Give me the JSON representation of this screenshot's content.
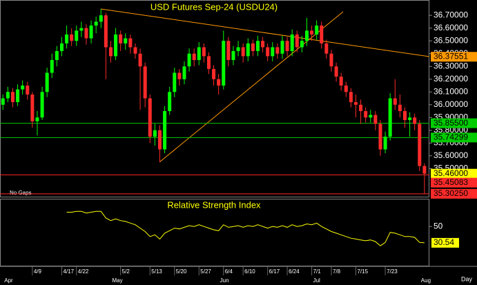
{
  "chart_data": {
    "type": "candlestick",
    "title": "USD Futures Sep-24 (USDU24)",
    "note": "No Gaps",
    "x_axis_label": "Day",
    "up_color": "#00ff00",
    "down_color": "#ff2a2a",
    "title_color": "#ffff00",
    "categories": [
      null,
      null,
      null,
      null,
      null,
      null,
      "4/9",
      null,
      null,
      null,
      null,
      null,
      "4/17",
      null,
      null,
      "4/22",
      null,
      null,
      null,
      null,
      null,
      null,
      null,
      null,
      "5/2",
      null,
      null,
      null,
      null,
      null,
      "5/13",
      null,
      null,
      null,
      null,
      "5/20",
      null,
      null,
      null,
      null,
      "5/27",
      null,
      null,
      null,
      null,
      "6/4",
      null,
      null,
      null,
      "6/10",
      null,
      null,
      null,
      null,
      "6/17",
      null,
      null,
      null,
      "6/24",
      null,
      null,
      null,
      null,
      "7/1",
      null,
      null,
      null,
      "7/8",
      null,
      null,
      null,
      null,
      "7/15",
      null,
      null,
      null,
      null,
      null,
      "7/23",
      null,
      null,
      null,
      null,
      null,
      null,
      null,
      null
    ],
    "months": [
      "Apr",
      null,
      null,
      null,
      null,
      null,
      null,
      null,
      null,
      null,
      null,
      null,
      null,
      null,
      null,
      null,
      null,
      null,
      null,
      null,
      null,
      null,
      "May",
      null,
      null,
      null,
      null,
      null,
      null,
      null,
      null,
      null,
      null,
      null,
      null,
      null,
      null,
      null,
      null,
      null,
      null,
      null,
      null,
      null,
      "Jun",
      null,
      null,
      null,
      null,
      null,
      null,
      null,
      null,
      null,
      null,
      null,
      null,
      null,
      null,
      null,
      null,
      null,
      null,
      "Jul",
      null,
      null,
      null,
      null,
      null,
      null,
      null,
      null,
      null,
      null,
      null,
      null,
      null,
      null,
      null,
      null,
      null,
      null,
      null,
      null,
      null,
      "Aug",
      null
    ],
    "open": [
      36.0,
      36.05,
      36.1,
      36.02,
      36.12,
      36.15,
      36.08,
      35.87,
      35.9,
      36.1,
      36.25,
      36.35,
      36.42,
      36.48,
      36.55,
      36.5,
      36.58,
      36.6,
      36.52,
      36.62,
      36.65,
      36.7,
      36.45,
      36.38,
      36.55,
      36.48,
      36.52,
      36.45,
      36.4,
      36.3,
      36.05,
      35.75,
      35.8,
      35.65,
      35.95,
      36.1,
      36.25,
      36.2,
      36.3,
      36.4,
      36.35,
      36.45,
      36.38,
      36.28,
      36.2,
      36.15,
      36.5,
      36.35,
      36.42,
      36.45,
      36.38,
      36.48,
      36.42,
      36.5,
      36.45,
      36.38,
      36.45,
      36.4,
      36.5,
      36.42,
      36.55,
      36.45,
      36.5,
      36.58,
      36.55,
      36.62,
      36.48,
      36.4,
      36.3,
      36.22,
      36.15,
      36.1,
      36.02,
      36.0,
      35.95,
      35.9,
      35.92,
      35.85,
      35.65,
      35.75,
      36.05,
      36.0,
      35.95,
      35.88,
      35.9,
      35.85,
      35.52
    ],
    "high": [
      36.08,
      36.14,
      36.13,
      36.16,
      36.19,
      36.18,
      36.1,
      35.95,
      36.14,
      36.29,
      36.4,
      36.46,
      36.53,
      36.62,
      36.6,
      36.62,
      36.65,
      36.63,
      36.66,
      36.69,
      36.75,
      36.72,
      36.5,
      36.6,
      36.58,
      36.56,
      36.55,
      36.48,
      36.44,
      36.33,
      36.08,
      35.85,
      35.84,
      35.99,
      36.14,
      36.29,
      36.28,
      36.34,
      36.44,
      36.44,
      36.49,
      36.48,
      36.41,
      36.31,
      36.24,
      36.58,
      36.53,
      36.46,
      36.5,
      36.48,
      36.52,
      36.51,
      36.54,
      36.53,
      36.48,
      36.49,
      36.48,
      36.54,
      36.53,
      36.59,
      36.58,
      36.54,
      36.68,
      36.62,
      36.66,
      36.65,
      36.51,
      36.43,
      36.33,
      36.25,
      36.18,
      36.13,
      36.08,
      36.04,
      35.98,
      35.96,
      35.95,
      35.88,
      35.79,
      36.09,
      36.2,
      36.08,
      35.98,
      35.94,
      35.93,
      35.88,
      35.54
    ],
    "low": [
      35.96,
      36.02,
      35.98,
      35.99,
      36.08,
      36.04,
      35.82,
      35.76,
      35.88,
      36.06,
      36.21,
      36.3,
      36.38,
      36.44,
      36.46,
      36.46,
      36.53,
      36.47,
      36.48,
      36.56,
      36.6,
      36.2,
      36.33,
      36.35,
      36.42,
      36.43,
      36.4,
      36.36,
      35.96,
      35.98,
      35.7,
      35.68,
      35.55,
      35.62,
      35.92,
      36.06,
      36.15,
      36.16,
      36.26,
      36.3,
      36.31,
      36.33,
      36.24,
      36.15,
      36.08,
      36.12,
      36.3,
      36.31,
      36.38,
      36.33,
      36.34,
      36.38,
      36.38,
      36.41,
      36.34,
      36.34,
      36.36,
      36.36,
      36.38,
      36.38,
      36.41,
      36.41,
      36.46,
      36.5,
      36.51,
      36.44,
      36.36,
      36.26,
      36.18,
      36.11,
      36.06,
      35.98,
      35.9,
      35.85,
      35.86,
      35.86,
      35.8,
      35.6,
      35.62,
      35.72,
      35.96,
      35.9,
      35.82,
      35.75,
      35.8,
      35.48,
      35.3
    ],
    "close": [
      36.05,
      36.1,
      36.02,
      36.12,
      36.15,
      36.08,
      35.87,
      35.9,
      36.1,
      36.25,
      36.35,
      36.42,
      36.48,
      36.55,
      36.5,
      36.58,
      36.6,
      36.52,
      36.62,
      36.65,
      36.7,
      36.45,
      36.38,
      36.55,
      36.48,
      36.52,
      36.45,
      36.4,
      36.3,
      36.05,
      35.75,
      35.8,
      35.65,
      35.95,
      36.1,
      36.25,
      36.2,
      36.3,
      36.4,
      36.35,
      36.45,
      36.38,
      36.28,
      36.2,
      36.15,
      36.5,
      36.35,
      36.42,
      36.45,
      36.38,
      36.48,
      36.42,
      36.5,
      36.45,
      36.38,
      36.45,
      36.4,
      36.5,
      36.42,
      36.55,
      36.45,
      36.5,
      36.58,
      36.55,
      36.62,
      36.48,
      36.4,
      36.3,
      36.22,
      36.15,
      36.1,
      36.02,
      36.0,
      35.95,
      35.9,
      35.92,
      35.85,
      35.65,
      35.75,
      36.05,
      36.0,
      35.95,
      35.88,
      35.9,
      35.85,
      35.52,
      35.46
    ],
    "ylim": [
      35.28,
      36.82
    ],
    "yticks": [
      {
        "value": 35.5,
        "label": "35.50000"
      },
      {
        "value": 35.6,
        "label": "35.60000"
      },
      {
        "value": 35.7,
        "label": "35.70000"
      },
      {
        "value": 35.8,
        "label": "35.80000"
      },
      {
        "value": 35.9,
        "label": "35.90000"
      },
      {
        "value": 36.0,
        "label": "36.00000"
      },
      {
        "value": 36.1,
        "label": "36.10000"
      },
      {
        "value": 36.2,
        "label": "36.20000"
      },
      {
        "value": 36.3,
        "label": "36.30000"
      },
      {
        "value": 36.4,
        "label": "36.40000"
      },
      {
        "value": 36.5,
        "label": "36.50000"
      },
      {
        "value": 36.6,
        "label": "36.60000"
      },
      {
        "value": 36.7,
        "label": "36.70000"
      }
    ],
    "levels": [
      {
        "value": 35.855,
        "color": "#00cc00"
      },
      {
        "value": 35.74299,
        "color": "#00cc00"
      },
      {
        "value": 35.45083,
        "color": "#ff2a2a"
      },
      {
        "value": 35.3025,
        "color": "#ff2a2a"
      }
    ],
    "price_labels": [
      {
        "value": 36.37551,
        "label": "36.37551",
        "color": "#ff9900"
      },
      {
        "value": 35.855,
        "label": "35.85500",
        "color": "#00cc00"
      },
      {
        "value": 35.74299,
        "label": "35.74299",
        "color": "#00cc00"
      },
      {
        "value": 35.46,
        "label": "35.46000",
        "color": "#ffff00"
      },
      {
        "value": 35.45083,
        "label": "35.45083",
        "color": "#ff2a2a"
      },
      {
        "value": 35.3025,
        "label": "35.30250",
        "color": "#ff2a2a"
      }
    ],
    "rsi": {
      "type": "line",
      "title": "Relative Strength Index",
      "color": "#ffff00",
      "values": [
        null,
        null,
        null,
        null,
        null,
        null,
        null,
        null,
        null,
        null,
        null,
        null,
        null,
        67,
        67,
        68,
        68,
        66,
        67,
        68,
        68,
        60,
        57,
        59,
        57,
        56,
        54,
        52,
        48,
        44,
        38,
        40,
        35,
        42,
        45,
        48,
        47,
        49,
        51,
        50,
        52,
        50,
        48,
        46,
        45,
        52,
        49,
        50,
        51,
        49,
        51,
        50,
        52,
        50,
        48,
        50,
        49,
        51,
        49,
        52,
        50,
        51,
        53,
        52,
        54,
        50,
        47,
        44,
        42,
        40,
        38,
        36,
        35,
        34,
        33,
        34,
        32,
        27,
        31,
        43,
        42,
        40,
        38,
        38,
        37,
        31,
        30.54
      ],
      "ylim": [
        2.5,
        83
      ],
      "yticks": [
        50
      ]
    }
  }
}
